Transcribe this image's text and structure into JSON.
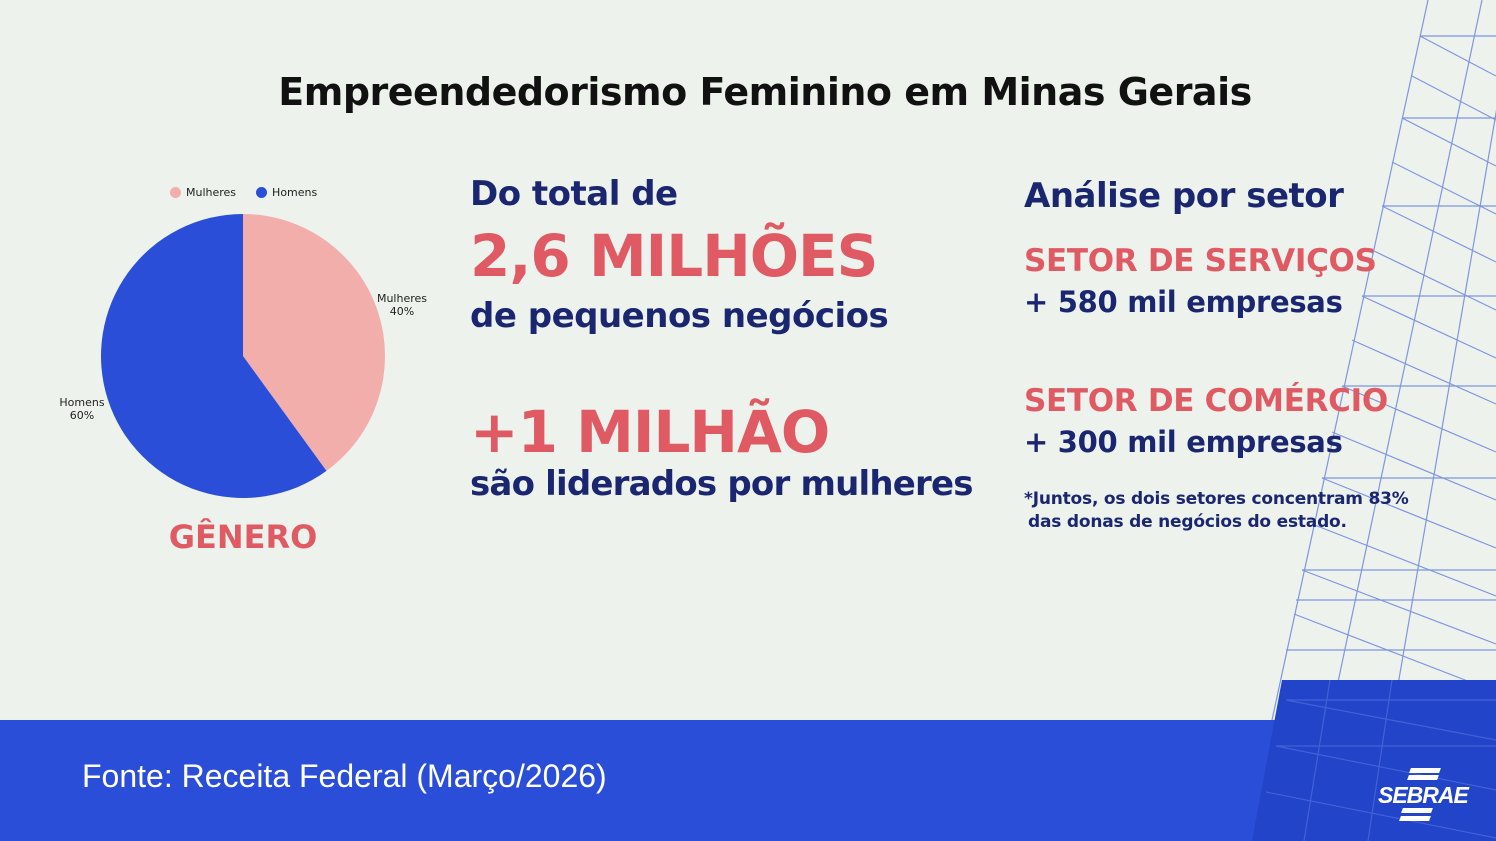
{
  "title": "Empreendedorismo Feminino em Minas Gerais",
  "chart_data": {
    "type": "pie",
    "legend": [
      "Mulheres",
      "Homens"
    ],
    "legend_position": "top",
    "slices": [
      {
        "label": "Mulheres",
        "value": 40,
        "value_label": "40%",
        "color": "#f2aeab"
      },
      {
        "label": "Homens",
        "value": 60,
        "value_label": "60%",
        "color": "#2a4ed8"
      }
    ],
    "caption": "GÊNERO"
  },
  "middle": {
    "intro": "Do total de",
    "big1": "2,6 MILHÕES",
    "sub1": "de pequenos negócios",
    "big2": "+1 MILHÃO",
    "sub2": "são liderados por mulheres"
  },
  "right": {
    "heading": "Análise por setor",
    "sector1": "SETOR DE SERVIÇOS",
    "value1": "+ 580 mil empresas",
    "sector2": "SETOR DE COMÉRCIO",
    "value2": "+ 300 mil empresas",
    "note_line1": "*Juntos, os dois setores concentram 83%",
    "note_line2": "das donas de negócios do estado."
  },
  "footer": {
    "source": "Fonte: Receita Federal (Março/2026)",
    "logo": "SEBRAE"
  },
  "colors": {
    "background": "#eef2ed",
    "navy": "#1a2670",
    "coral": "#e05a64",
    "blue": "#2a4ed8",
    "pink": "#f2aeab"
  }
}
